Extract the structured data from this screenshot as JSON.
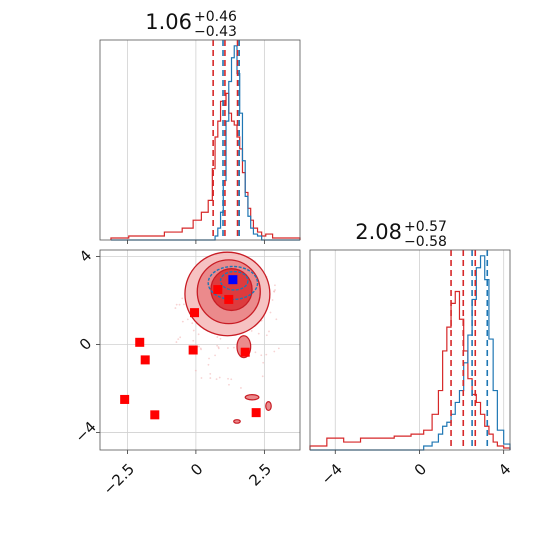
{
  "chart_data": [
    {
      "panel": "marginal-x",
      "type": "histogram",
      "title": "1.06",
      "title_sup": "+0.46",
      "title_sub": "−0.43",
      "xlim": [
        -3.5,
        3.8
      ],
      "grid": true,
      "xticks": [
        -2.5,
        0.0,
        2.5
      ],
      "bin_edges": [
        -3.1,
        -2.45,
        -1.8,
        -1.15,
        -0.5,
        -0.1,
        0.2,
        0.45,
        0.6,
        0.7,
        0.8,
        0.9,
        1.0,
        1.1,
        1.2,
        1.3,
        1.4,
        1.5,
        1.6,
        1.7,
        1.8,
        1.9,
        2.0,
        2.1,
        2.25,
        2.4,
        2.55,
        2.8,
        3.1,
        3.8
      ],
      "series": [
        {
          "color": "#d62728",
          "values": [
            0.01,
            0.02,
            0.02,
            0.04,
            0.06,
            0.1,
            0.14,
            0.2,
            0.36,
            0.52,
            0.6,
            0.7,
            0.68,
            0.74,
            0.64,
            0.6,
            0.58,
            0.52,
            0.46,
            0.34,
            0.24,
            0.16,
            0.1,
            0.06,
            0.04,
            0.02,
            0.03,
            0.01,
            0.01
          ]
        },
        {
          "color": "#1f77b4",
          "values": [
            0,
            0,
            0,
            0,
            0,
            0,
            0,
            0,
            0,
            0.02,
            0.06,
            0.14,
            0.3,
            0.6,
            0.8,
            0.92,
            0.98,
            0.84,
            0.64,
            0.4,
            0.22,
            0.12,
            0.06,
            0.03,
            0.02,
            0,
            0,
            0,
            0
          ]
        }
      ],
      "quantile_lines": [
        {
          "color": "#d62728",
          "values": [
            0.63,
            1.06,
            1.52
          ]
        },
        {
          "color": "#1f77b4",
          "values": [
            0.99,
            1.58
          ]
        }
      ]
    },
    {
      "panel": "joint",
      "type": "scatter",
      "xlim": [
        -3.5,
        3.8
      ],
      "ylim": [
        -4.8,
        4.3
      ],
      "grid": true,
      "xticks": [
        -2.5,
        0.0,
        2.5
      ],
      "yticks": [
        4,
        0,
        -4
      ],
      "red_squares": [
        {
          "x": -2.6,
          "y": -2.5
        },
        {
          "x": -2.05,
          "y": 0.1
        },
        {
          "x": -1.85,
          "y": -0.7
        },
        {
          "x": -1.5,
          "y": -3.2
        },
        {
          "x": -0.05,
          "y": 1.45
        },
        {
          "x": -0.1,
          "y": -0.25
        },
        {
          "x": 0.8,
          "y": 2.5
        },
        {
          "x": 1.2,
          "y": 2.05
        },
        {
          "x": 1.8,
          "y": -0.35
        },
        {
          "x": 2.2,
          "y": -3.1
        }
      ],
      "blue_square": {
        "x": 1.35,
        "y": 2.95
      },
      "red_contours": [
        {
          "cx": 1.15,
          "cy": 2.3,
          "rx": 1.55,
          "ry": 1.9
        },
        {
          "cx": 1.2,
          "cy": 2.4,
          "rx": 1.15,
          "ry": 1.45
        },
        {
          "cx": 1.3,
          "cy": 2.5,
          "rx": 0.75,
          "ry": 0.95
        }
      ],
      "blue_contours": [
        {
          "cx": 1.35,
          "cy": 2.8,
          "rx": 0.9,
          "ry": 0.75
        },
        {
          "cx": 1.4,
          "cy": 2.9,
          "rx": 0.5,
          "ry": 0.42
        }
      ],
      "small_red_blobs": [
        {
          "cx": 1.75,
          "cy": -0.1,
          "rx": 0.25,
          "ry": 0.5
        },
        {
          "cx": 2.05,
          "cy": -2.4,
          "rx": 0.25,
          "ry": 0.12
        },
        {
          "cx": 2.65,
          "cy": -2.8,
          "rx": 0.1,
          "ry": 0.2
        },
        {
          "cx": 1.5,
          "cy": -3.5,
          "rx": 0.12,
          "ry": 0.08
        }
      ]
    },
    {
      "panel": "marginal-y",
      "type": "histogram",
      "title": "2.08",
      "title_sup": "+0.57",
      "title_sub": "−0.58",
      "xlim": [
        -5.2,
        4.3
      ],
      "grid": true,
      "xticks": [
        -4,
        0,
        4
      ],
      "bin_edges": [
        -5.2,
        -4.4,
        -3.6,
        -2.8,
        -2.0,
        -1.2,
        -0.4,
        0.2,
        0.6,
        0.9,
        1.1,
        1.3,
        1.5,
        1.7,
        1.9,
        2.1,
        2.3,
        2.5,
        2.7,
        2.9,
        3.1,
        3.3,
        3.5,
        3.7,
        4.0,
        4.3
      ],
      "series": [
        {
          "color": "#d62728",
          "values": [
            0.02,
            0.06,
            0.04,
            0.06,
            0.06,
            0.07,
            0.08,
            0.1,
            0.18,
            0.3,
            0.5,
            0.62,
            0.74,
            0.8,
            0.66,
            0.5,
            0.36,
            0.28,
            0.24,
            0.18,
            0.12,
            0.08,
            0.04,
            0.02,
            0.01
          ]
        },
        {
          "color": "#1f77b4",
          "values": [
            0,
            0,
            0,
            0,
            0,
            0,
            0,
            0.02,
            0.04,
            0.08,
            0.12,
            0.14,
            0.18,
            0.24,
            0.3,
            0.44,
            0.58,
            0.76,
            0.92,
            0.98,
            0.86,
            0.56,
            0.3,
            0.1,
            0.03
          ]
        }
      ],
      "quantile_lines": [
        {
          "color": "#d62728",
          "values": [
            1.5,
            2.08,
            2.65
          ]
        },
        {
          "color": "#1f77b4",
          "values": [
            2.5,
            3.22
          ]
        }
      ]
    }
  ]
}
